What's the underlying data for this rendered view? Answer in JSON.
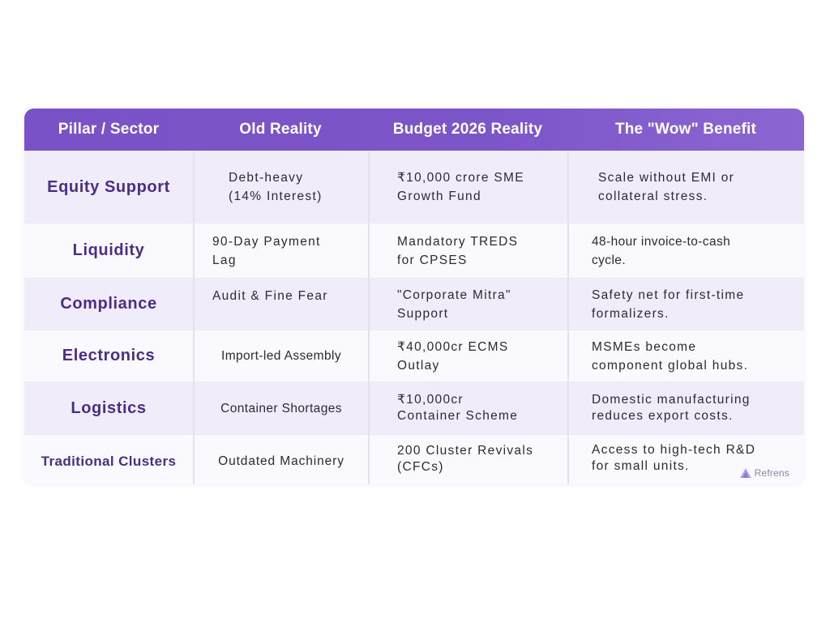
{
  "table": {
    "headers": [
      "Pillar / Sector",
      "Old Reality",
      "Budget 2026 Reality",
      "The \"Wow\" Benefit"
    ],
    "rows": [
      {
        "sector": "Equity Support",
        "old": "Debt-heavy\n(14% Interest)",
        "budget": "₹10,000 crore SME\nGrowth Fund",
        "benefit": "Scale without EMI or\ncollateral stress."
      },
      {
        "sector": "Liquidity",
        "old": "90-Day Payment\nLag",
        "budget": "Mandatory TREDS\nfor CPSES",
        "benefit": "48-hour invoice-to-cash\ncycle."
      },
      {
        "sector": "Compliance",
        "old": "Audit & Fine Fear",
        "budget": "\"Corporate Mitra\"\nSupport",
        "benefit": "Safety net for first-time\nformalizers."
      },
      {
        "sector": "Electronics",
        "old": "Import-led Assembly",
        "budget": "₹40,000cr ECMS\nOutlay",
        "benefit": "MSMEs become\ncomponent global hubs."
      },
      {
        "sector": "Logistics",
        "old": "Container Shortages",
        "budget": "₹10,000cr\nContainer Scheme",
        "benefit": "Domestic manufacturing\nreduces export costs."
      },
      {
        "sector": "Traditional Clusters",
        "old": "Outdated Machinery",
        "budget": "200 Cluster Revivals\n(CFCs)",
        "benefit": "Access to high-tech R&D\nfor small units."
      }
    ]
  },
  "brand": {
    "name": "Refrens",
    "icon": "refrens-logo-icon"
  },
  "colors": {
    "header_bg": "#7a52c7",
    "sector_text": "#4b2d86",
    "row_odd": "#f1ecfa",
    "row_even": "#faf9fd"
  }
}
